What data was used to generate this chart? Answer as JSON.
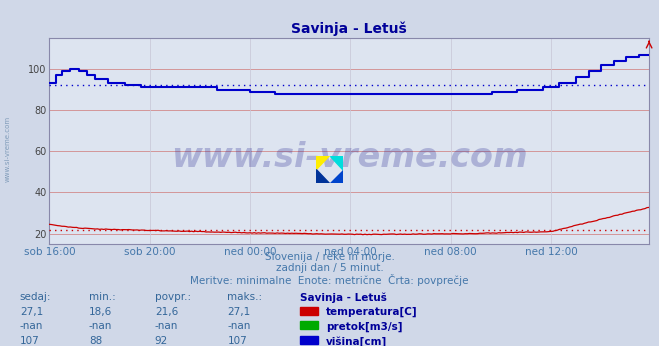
{
  "title": "Savinja - Letuš",
  "title_color": "#000099",
  "bg_color": "#d0d8e8",
  "plot_bg_color": "#dde4f0",
  "grid_color_h": "#d08080",
  "grid_color_v": "#c8c8d8",
  "xlim": [
    0,
    287
  ],
  "ylim": [
    15,
    115
  ],
  "yticks": [
    20,
    40,
    60,
    80,
    100
  ],
  "xtick_labels": [
    "sob 16:00",
    "sob 20:00",
    "ned 00:00",
    "ned 04:00",
    "ned 08:00",
    "ned 12:00"
  ],
  "xtick_positions": [
    0,
    48,
    96,
    144,
    192,
    240
  ],
  "temp_color": "#cc0000",
  "temp_avg": 21.6,
  "visina_color": "#0000cc",
  "visina_avg": 92,
  "watermark_text": "www.si-vreme.com",
  "watermark_color": "#1a1a8c",
  "watermark_alpha": 0.25,
  "subtitle_lines": [
    "Slovenija / reke in morje.",
    "zadnji dan / 5 minut.",
    "Meritve: minimalne  Enote: metrične  Črta: povprečje"
  ],
  "subtitle_color": "#4477aa",
  "table_header": [
    "sedaj:",
    "min.:",
    "povpr.:",
    "maks.:",
    "Savinja - Letuš"
  ],
  "table_rows": [
    [
      "27,1",
      "18,6",
      "21,6",
      "27,1",
      "temperatura[C]",
      "#cc0000"
    ],
    [
      "-nan",
      "-nan",
      "-nan",
      "-nan",
      "pretok[m3/s]",
      "#00aa00"
    ],
    [
      "107",
      "88",
      "92",
      "107",
      "višina[cm]",
      "#0000cc"
    ]
  ],
  "table_color": "#336699",
  "table_header_color": "#000099",
  "left_label": "www.si-vreme.com",
  "left_label_color": "#6688aa",
  "axis_label_color": "#4477aa",
  "spine_color": "#8888aa"
}
